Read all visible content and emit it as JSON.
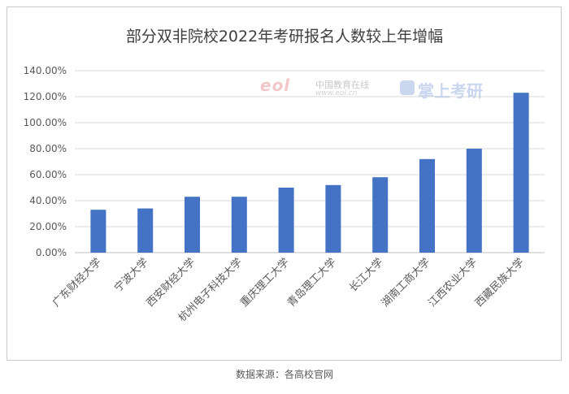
{
  "chart_data": {
    "type": "bar",
    "title": "部分双非院校2022年考研报名人数较上年增幅",
    "categories": [
      "广东财经大学",
      "宁波大学",
      "西安财经大学",
      "杭州电子科技大学",
      "重庆理工大学",
      "青岛理工大学",
      "长江大学",
      "湖南工商大学",
      "江西农业大学",
      "西藏民族大学"
    ],
    "values": [
      33,
      34,
      43,
      43,
      50,
      52,
      58,
      72,
      80,
      123
    ],
    "value_unit": "%",
    "ylim": [
      0,
      140
    ],
    "yticks": [
      "0.00%",
      "20.00%",
      "40.00%",
      "60.00%",
      "80.00%",
      "100.00%",
      "120.00%",
      "140.00%"
    ],
    "grid": true,
    "bar_color": "#4472c4",
    "xlabel": "",
    "ylabel": ""
  },
  "source_note": "数据来源：各高校官网",
  "watermarks": {
    "eol_logo": "eol",
    "eol_name": "中国教育在线",
    "eol_url": "www.eol.cn",
    "kaoyan": "掌上考研"
  }
}
